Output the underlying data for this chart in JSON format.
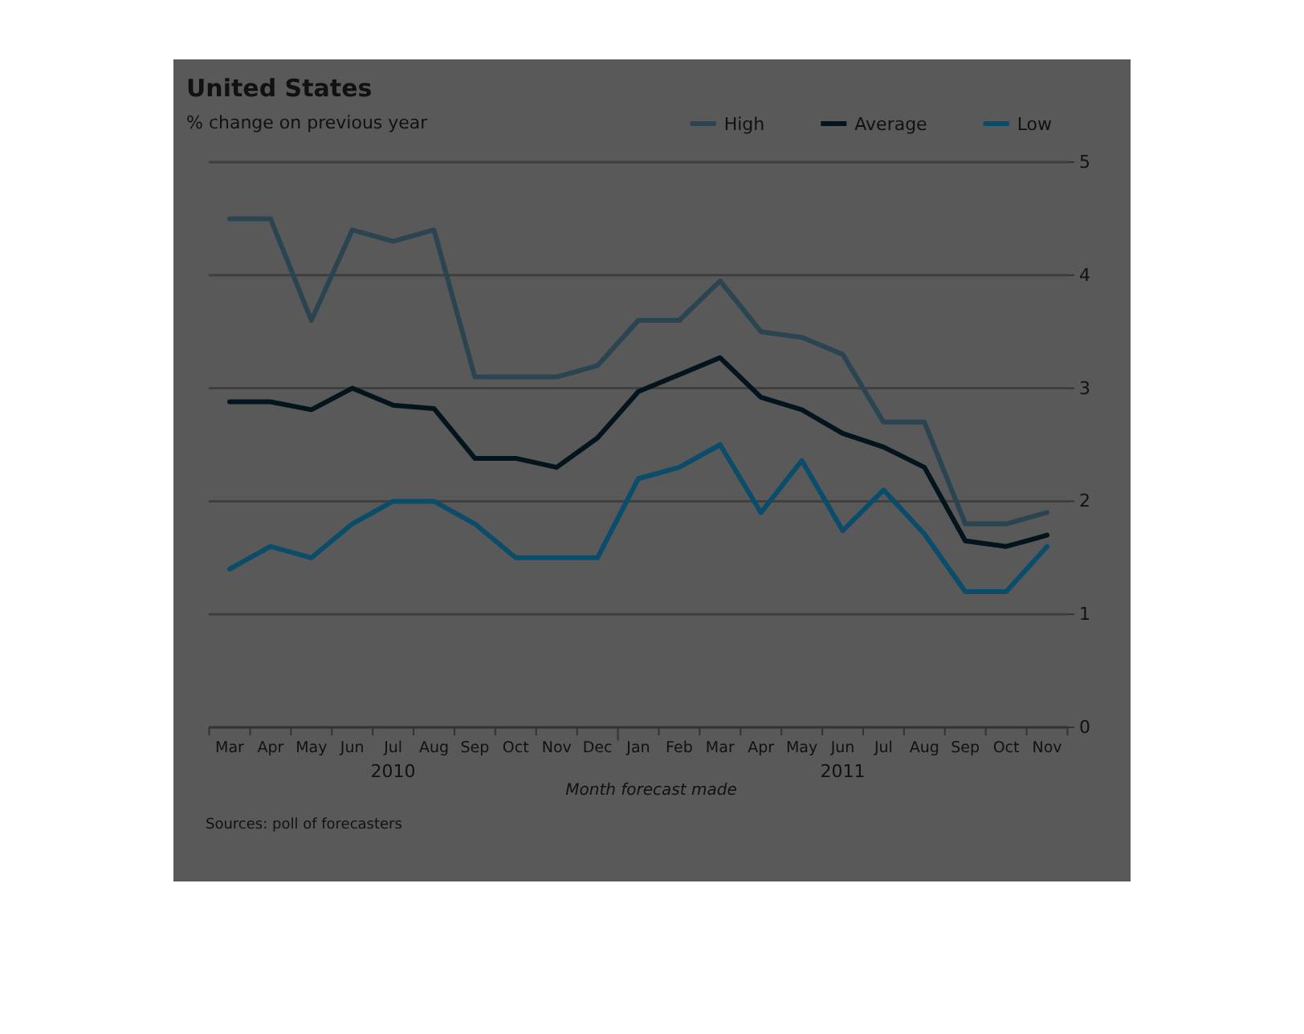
{
  "chart_data": {
    "type": "line",
    "title": "United States",
    "subtitle": "% change on previous year",
    "xlabel": "Month forecast made",
    "categories": [
      "Mar",
      "Apr",
      "May",
      "Jun",
      "Jul",
      "Aug",
      "Sep",
      "Oct",
      "Nov",
      "Dec",
      "Jan",
      "Feb",
      "Mar",
      "Apr",
      "May",
      "Jun",
      "Jul",
      "Aug",
      "Sep",
      "Oct",
      "Nov"
    ],
    "series": [
      {
        "name": "High",
        "color": "#2b4452",
        "values": [
          4.5,
          4.5,
          3.6,
          4.4,
          4.3,
          4.4,
          3.1,
          3.1,
          3.1,
          3.2,
          3.6,
          3.6,
          3.95,
          3.5,
          3.45,
          3.3,
          2.7,
          2.7,
          1.8,
          1.8,
          1.9
        ]
      },
      {
        "name": "Average",
        "color": "#04141c",
        "values": [
          2.88,
          2.88,
          2.81,
          3.0,
          2.85,
          2.82,
          2.38,
          2.38,
          2.3,
          2.56,
          2.97,
          3.12,
          3.27,
          2.92,
          2.81,
          2.6,
          2.48,
          2.3,
          1.65,
          1.6,
          1.7
        ]
      },
      {
        "name": "Low",
        "color": "#0a4d6a",
        "values": [
          1.4,
          1.6,
          1.5,
          1.8,
          2.0,
          2.0,
          1.8,
          1.5,
          1.5,
          1.5,
          2.2,
          2.3,
          2.5,
          1.9,
          2.36,
          1.74,
          2.1,
          1.71,
          1.2,
          1.2,
          1.6
        ]
      }
    ],
    "ylim": [
      0,
      5
    ],
    "yticks": [
      0,
      1,
      2,
      3,
      4,
      5
    ],
    "grid": "y",
    "legend": "top right",
    "marker": "none",
    "line_style": "solid",
    "annotations": [
      "2010",
      "2011",
      "Sources: poll of forecasters"
    ]
  }
}
